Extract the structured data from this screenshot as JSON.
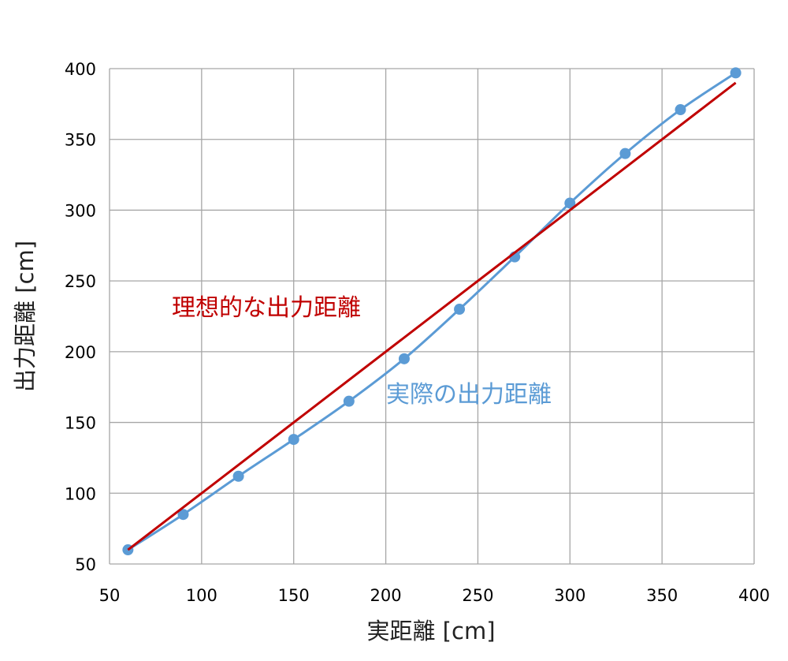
{
  "chart_data": {
    "type": "line",
    "xlabel": "実距離 [cm]",
    "ylabel": "出力距離 [cm]",
    "xlim": [
      50,
      400
    ],
    "ylim": [
      50,
      400
    ],
    "x_ticks": [
      50,
      100,
      150,
      200,
      250,
      300,
      350,
      400
    ],
    "y_ticks": [
      50,
      100,
      150,
      200,
      250,
      300,
      350,
      400
    ],
    "grid": true,
    "series": [
      {
        "name": "理想的な出力距離",
        "color": "#c00000",
        "markers": false,
        "x": [
          60,
          390
        ],
        "y": [
          60,
          390
        ]
      },
      {
        "name": "実際の出力距離",
        "color": "#5b9bd5",
        "markers": true,
        "smooth": true,
        "x": [
          60,
          90,
          120,
          150,
          180,
          210,
          240,
          270,
          300,
          330,
          360,
          390
        ],
        "y": [
          60,
          85,
          112,
          138,
          165,
          195,
          230,
          267,
          305,
          340,
          371,
          397
        ]
      }
    ]
  }
}
